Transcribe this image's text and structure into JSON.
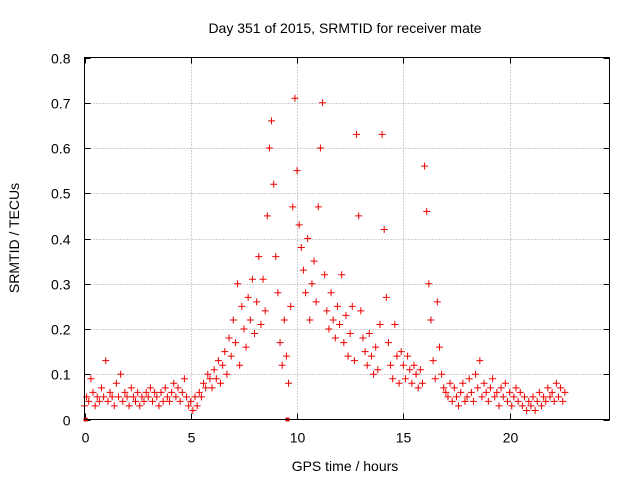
{
  "chart_data": {
    "type": "scatter",
    "title": "Day 351 of 2015, SRMTID for receiver mate",
    "xlabel": "GPS time / hours",
    "ylabel": "SRMTID / TECUs",
    "xlim": [
      0,
      24.7
    ],
    "ylim": [
      0,
      0.8
    ],
    "x_ticks": [
      "0",
      "5",
      "10",
      "15",
      "20"
    ],
    "y_ticks": [
      "0",
      "0.1",
      "0.2",
      "0.3",
      "0.4",
      "0.5",
      "0.6",
      "0.7",
      "0.8"
    ],
    "grid": true,
    "marker": "+",
    "series": [
      {
        "name": "SRMTID",
        "color": "#ee0000",
        "points": [
          [
            0.0,
            0.03
          ],
          [
            0.1,
            0.05
          ],
          [
            0.2,
            0.04
          ],
          [
            0.3,
            0.09
          ],
          [
            0.4,
            0.06
          ],
          [
            0.5,
            0.03
          ],
          [
            0.6,
            0.05
          ],
          [
            0.7,
            0.04
          ],
          [
            0.8,
            0.07
          ],
          [
            0.9,
            0.05
          ],
          [
            1.0,
            0.13
          ],
          [
            1.1,
            0.04
          ],
          [
            1.2,
            0.06
          ],
          [
            1.3,
            0.05
          ],
          [
            1.4,
            0.03
          ],
          [
            1.5,
            0.08
          ],
          [
            1.6,
            0.05
          ],
          [
            1.7,
            0.1
          ],
          [
            1.8,
            0.04
          ],
          [
            1.9,
            0.06
          ],
          [
            2.0,
            0.05
          ],
          [
            2.1,
            0.03
          ],
          [
            2.2,
            0.07
          ],
          [
            2.3,
            0.05
          ],
          [
            2.4,
            0.04
          ],
          [
            2.5,
            0.06
          ],
          [
            2.6,
            0.03
          ],
          [
            2.7,
            0.05
          ],
          [
            2.8,
            0.04
          ],
          [
            2.9,
            0.06
          ],
          [
            3.0,
            0.05
          ],
          [
            3.1,
            0.07
          ],
          [
            3.2,
            0.04
          ],
          [
            3.3,
            0.06
          ],
          [
            3.4,
            0.05
          ],
          [
            3.5,
            0.03
          ],
          [
            3.6,
            0.06
          ],
          [
            3.7,
            0.04
          ],
          [
            3.8,
            0.07
          ],
          [
            3.9,
            0.05
          ],
          [
            4.0,
            0.04
          ],
          [
            4.1,
            0.06
          ],
          [
            4.2,
            0.08
          ],
          [
            4.3,
            0.05
          ],
          [
            4.4,
            0.07
          ],
          [
            4.5,
            0.04
          ],
          [
            4.6,
            0.06
          ],
          [
            4.7,
            0.09
          ],
          [
            4.8,
            0.05
          ],
          [
            4.9,
            0.03
          ],
          [
            5.0,
            0.04
          ],
          [
            5.1,
            0.02
          ],
          [
            5.2,
            0.05
          ],
          [
            5.3,
            0.03
          ],
          [
            5.4,
            0.06
          ],
          [
            5.5,
            0.05
          ],
          [
            5.6,
            0.08
          ],
          [
            5.7,
            0.07
          ],
          [
            5.8,
            0.1
          ],
          [
            5.9,
            0.09
          ],
          [
            6.0,
            0.07
          ],
          [
            6.1,
            0.11
          ],
          [
            6.2,
            0.09
          ],
          [
            6.3,
            0.13
          ],
          [
            6.4,
            0.08
          ],
          [
            6.5,
            0.12
          ],
          [
            6.6,
            0.15
          ],
          [
            6.7,
            0.1
          ],
          [
            6.8,
            0.18
          ],
          [
            6.9,
            0.14
          ],
          [
            7.0,
            0.22
          ],
          [
            7.1,
            0.17
          ],
          [
            7.2,
            0.3
          ],
          [
            7.3,
            0.12
          ],
          [
            7.4,
            0.25
          ],
          [
            7.5,
            0.2
          ],
          [
            7.6,
            0.16
          ],
          [
            7.7,
            0.27
          ],
          [
            7.8,
            0.22
          ],
          [
            7.9,
            0.31
          ],
          [
            8.0,
            0.19
          ],
          [
            8.1,
            0.26
          ],
          [
            8.2,
            0.36
          ],
          [
            8.3,
            0.21
          ],
          [
            8.4,
            0.31
          ],
          [
            8.5,
            0.24
          ],
          [
            8.6,
            0.45
          ],
          [
            8.7,
            0.6
          ],
          [
            8.8,
            0.66
          ],
          [
            8.9,
            0.52
          ],
          [
            9.0,
            0.36
          ],
          [
            9.1,
            0.28
          ],
          [
            9.2,
            0.17
          ],
          [
            9.3,
            0.12
          ],
          [
            9.4,
            0.22
          ],
          [
            9.5,
            0.14
          ],
          [
            9.6,
            0.08
          ],
          [
            9.7,
            0.25
          ],
          [
            9.8,
            0.47
          ],
          [
            9.9,
            0.71
          ],
          [
            10.0,
            0.55
          ],
          [
            10.1,
            0.43
          ],
          [
            10.2,
            0.38
          ],
          [
            10.3,
            0.33
          ],
          [
            10.4,
            0.28
          ],
          [
            10.5,
            0.4
          ],
          [
            10.6,
            0.22
          ],
          [
            10.7,
            0.3
          ],
          [
            10.8,
            0.35
          ],
          [
            10.9,
            0.26
          ],
          [
            11.0,
            0.47
          ],
          [
            11.1,
            0.6
          ],
          [
            11.2,
            0.7
          ],
          [
            11.3,
            0.32
          ],
          [
            11.4,
            0.24
          ],
          [
            11.5,
            0.2
          ],
          [
            11.6,
            0.28
          ],
          [
            11.7,
            0.22
          ],
          [
            11.8,
            0.18
          ],
          [
            11.9,
            0.25
          ],
          [
            12.0,
            0.21
          ],
          [
            12.1,
            0.32
          ],
          [
            12.2,
            0.17
          ],
          [
            12.3,
            0.23
          ],
          [
            12.4,
            0.14
          ],
          [
            12.5,
            0.19
          ],
          [
            12.6,
            0.25
          ],
          [
            12.7,
            0.13
          ],
          [
            12.8,
            0.63
          ],
          [
            12.9,
            0.45
          ],
          [
            13.0,
            0.24
          ],
          [
            13.1,
            0.18
          ],
          [
            13.2,
            0.15
          ],
          [
            13.3,
            0.12
          ],
          [
            13.4,
            0.19
          ],
          [
            13.5,
            0.14
          ],
          [
            13.6,
            0.1
          ],
          [
            13.7,
            0.16
          ],
          [
            13.8,
            0.11
          ],
          [
            13.9,
            0.21
          ],
          [
            14.0,
            0.63
          ],
          [
            14.1,
            0.42
          ],
          [
            14.2,
            0.27
          ],
          [
            14.3,
            0.17
          ],
          [
            14.4,
            0.12
          ],
          [
            14.5,
            0.09
          ],
          [
            14.6,
            0.21
          ],
          [
            14.7,
            0.14
          ],
          [
            14.8,
            0.08
          ],
          [
            14.9,
            0.15
          ],
          [
            15.0,
            0.12
          ],
          [
            15.1,
            0.09
          ],
          [
            15.2,
            0.14
          ],
          [
            15.3,
            0.11
          ],
          [
            15.4,
            0.08
          ],
          [
            15.5,
            0.12
          ],
          [
            15.6,
            0.1
          ],
          [
            15.7,
            0.07
          ],
          [
            15.8,
            0.11
          ],
          [
            15.9,
            0.08
          ],
          [
            16.0,
            0.56
          ],
          [
            16.1,
            0.46
          ],
          [
            16.2,
            0.3
          ],
          [
            16.3,
            0.22
          ],
          [
            16.4,
            0.13
          ],
          [
            16.5,
            0.09
          ],
          [
            16.6,
            0.26
          ],
          [
            16.7,
            0.16
          ],
          [
            16.8,
            0.1
          ],
          [
            16.9,
            0.07
          ],
          [
            17.0,
            0.06
          ],
          [
            17.1,
            0.05
          ],
          [
            17.2,
            0.08
          ],
          [
            17.3,
            0.04
          ],
          [
            17.4,
            0.07
          ],
          [
            17.5,
            0.05
          ],
          [
            17.6,
            0.03
          ],
          [
            17.7,
            0.06
          ],
          [
            17.8,
            0.08
          ],
          [
            17.9,
            0.04
          ],
          [
            18.0,
            0.05
          ],
          [
            18.1,
            0.09
          ],
          [
            18.2,
            0.06
          ],
          [
            18.3,
            0.04
          ],
          [
            18.4,
            0.1
          ],
          [
            18.5,
            0.07
          ],
          [
            18.6,
            0.13
          ],
          [
            18.7,
            0.05
          ],
          [
            18.8,
            0.08
          ],
          [
            18.9,
            0.06
          ],
          [
            19.0,
            0.04
          ],
          [
            19.1,
            0.07
          ],
          [
            19.2,
            0.09
          ],
          [
            19.3,
            0.05
          ],
          [
            19.4,
            0.06
          ],
          [
            19.5,
            0.03
          ],
          [
            19.6,
            0.07
          ],
          [
            19.7,
            0.05
          ],
          [
            19.8,
            0.08
          ],
          [
            19.9,
            0.04
          ],
          [
            20.0,
            0.06
          ],
          [
            20.1,
            0.03
          ],
          [
            20.2,
            0.05
          ],
          [
            20.3,
            0.07
          ],
          [
            20.4,
            0.04
          ],
          [
            20.5,
            0.06
          ],
          [
            20.6,
            0.03
          ],
          [
            20.7,
            0.05
          ],
          [
            20.8,
            0.02
          ],
          [
            20.9,
            0.04
          ],
          [
            21.0,
            0.03
          ],
          [
            21.1,
            0.05
          ],
          [
            21.2,
            0.02
          ],
          [
            21.3,
            0.04
          ],
          [
            21.4,
            0.06
          ],
          [
            21.5,
            0.03
          ],
          [
            21.6,
            0.05
          ],
          [
            21.7,
            0.04
          ],
          [
            21.8,
            0.07
          ],
          [
            21.9,
            0.05
          ],
          [
            22.0,
            0.06
          ],
          [
            22.1,
            0.04
          ],
          [
            22.2,
            0.08
          ],
          [
            22.3,
            0.05
          ],
          [
            22.4,
            0.07
          ],
          [
            22.5,
            0.04
          ],
          [
            22.6,
            0.06
          ]
        ]
      }
    ],
    "axis_markers": [
      [
        0.05,
        0.0
      ],
      [
        9.55,
        0.0
      ]
    ]
  }
}
